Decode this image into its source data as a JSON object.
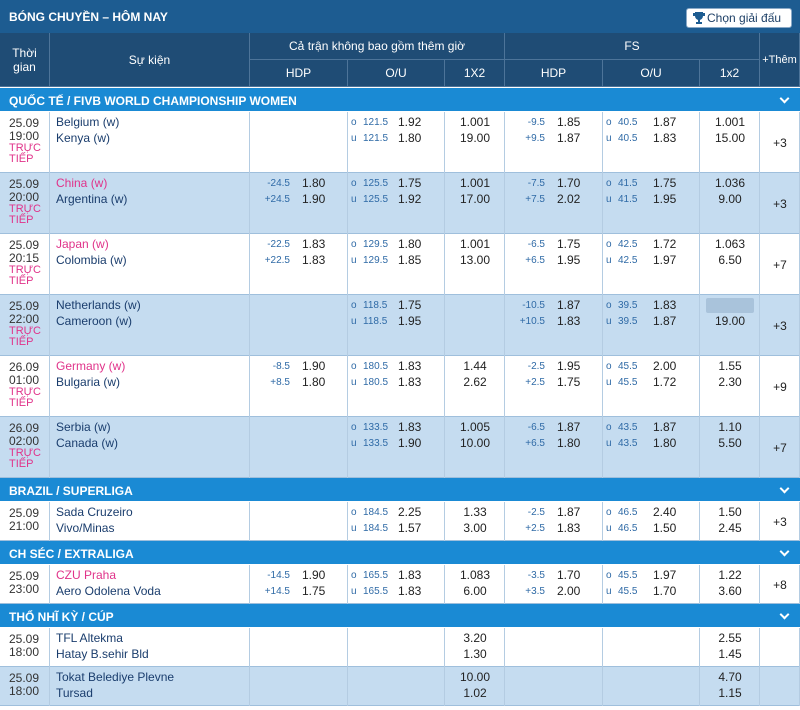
{
  "header": {
    "title": "BÓNG CHUYỀN – HÔM NAY",
    "button": "Chọn giải đấu"
  },
  "columns": {
    "time": "Thời gian",
    "event": "Sự kiện",
    "full": "Cả trận không bao gồm thêm giờ",
    "fs": "FS",
    "more": "+Thêm",
    "sub": [
      "HDP",
      "O/U",
      "1X2",
      "HDP",
      "O/U",
      "1x2"
    ]
  },
  "leagues": [
    {
      "name": "QUỐC TẾ / FIVB WORLD CHAMPIONSHIP WOMEN",
      "matches": [
        {
          "date": "25.09",
          "time": "19:00",
          "status": "TRỰC TIẾP",
          "teams": [
            "Belgium (w)",
            "Kenya (w)"
          ],
          "ft_hdp": null,
          "ft_ou": [
            [
              "o",
              "121.5",
              "1.92"
            ],
            [
              "u",
              "121.5",
              "1.80"
            ]
          ],
          "ft_1x2": [
            "1.001",
            "19.00"
          ],
          "fs_hdp": [
            [
              "-9.5",
              "1.85"
            ],
            [
              "+9.5",
              "1.87"
            ]
          ],
          "fs_ou": [
            [
              "o",
              "40.5",
              "1.87"
            ],
            [
              "u",
              "40.5",
              "1.83"
            ]
          ],
          "fs_1x2": [
            "1.001",
            "15.00"
          ],
          "more": "+3"
        },
        {
          "date": "25.09",
          "time": "20:00",
          "status": "TRỰC TIẾP",
          "teams": [
            "China (w)",
            "Argentina (w)"
          ],
          "home_color": "#e0338a",
          "ft_hdp": [
            [
              "-24.5",
              "1.80"
            ],
            [
              "+24.5",
              "1.90"
            ]
          ],
          "ft_ou": [
            [
              "o",
              "125.5",
              "1.75"
            ],
            [
              "u",
              "125.5",
              "1.92"
            ]
          ],
          "ft_1x2": [
            "1.001",
            "17.00"
          ],
          "fs_hdp": [
            [
              "-7.5",
              "1.70"
            ],
            [
              "+7.5",
              "2.02"
            ]
          ],
          "fs_ou": [
            [
              "o",
              "41.5",
              "1.75"
            ],
            [
              "u",
              "41.5",
              "1.95"
            ]
          ],
          "fs_1x2": [
            "1.036",
            "9.00"
          ],
          "more": "+3"
        },
        {
          "date": "25.09",
          "time": "20:15",
          "status": "TRỰC TIẾP",
          "teams": [
            "Japan (w)",
            "Colombia (w)"
          ],
          "home_color": "#e0338a",
          "ft_hdp": [
            [
              "-22.5",
              "1.83"
            ],
            [
              "+22.5",
              "1.83"
            ]
          ],
          "ft_ou": [
            [
              "o",
              "129.5",
              "1.80"
            ],
            [
              "u",
              "129.5",
              "1.85"
            ]
          ],
          "ft_1x2": [
            "1.001",
            "13.00"
          ],
          "fs_hdp": [
            [
              "-6.5",
              "1.75"
            ],
            [
              "+6.5",
              "1.95"
            ]
          ],
          "fs_ou": [
            [
              "o",
              "42.5",
              "1.72"
            ],
            [
              "u",
              "42.5",
              "1.97"
            ]
          ],
          "fs_1x2": [
            "1.063",
            "6.50"
          ],
          "more": "+7"
        },
        {
          "date": "25.09",
          "time": "22:00",
          "status": "TRỰC TIẾP",
          "teams": [
            "Netherlands (w)",
            "Cameroon (w)"
          ],
          "ft_hdp": null,
          "ft_ou": [
            [
              "o",
              "118.5",
              "1.75"
            ],
            [
              "u",
              "118.5",
              "1.95"
            ]
          ],
          "ft_1x2": null,
          "fs_hdp": [
            [
              "-10.5",
              "1.87"
            ],
            [
              "+10.5",
              "1.83"
            ]
          ],
          "fs_ou": [
            [
              "o",
              "39.5",
              "1.83"
            ],
            [
              "u",
              "39.5",
              "1.87"
            ]
          ],
          "fs_1x2": [
            null,
            "19.00"
          ],
          "fs_1x2_locked": true,
          "more": "+3"
        },
        {
          "date": "26.09",
          "time": "01:00",
          "status": "TRỰC TIẾP",
          "teams": [
            "Germany (w)",
            "Bulgaria (w)"
          ],
          "home_color": "#e0338a",
          "ft_hdp": [
            [
              "-8.5",
              "1.90"
            ],
            [
              "+8.5",
              "1.80"
            ]
          ],
          "ft_ou": [
            [
              "o",
              "180.5",
              "1.83"
            ],
            [
              "u",
              "180.5",
              "1.83"
            ]
          ],
          "ft_1x2": [
            "1.44",
            "2.62"
          ],
          "fs_hdp": [
            [
              "-2.5",
              "1.95"
            ],
            [
              "+2.5",
              "1.75"
            ]
          ],
          "fs_ou": [
            [
              "o",
              "45.5",
              "2.00"
            ],
            [
              "u",
              "45.5",
              "1.72"
            ]
          ],
          "fs_1x2": [
            "1.55",
            "2.30"
          ],
          "more": "+9"
        },
        {
          "date": "26.09",
          "time": "02:00",
          "status": "TRỰC TIẾP",
          "teams": [
            "Serbia (w)",
            "Canada (w)"
          ],
          "ft_hdp": null,
          "ft_ou": [
            [
              "o",
              "133.5",
              "1.83"
            ],
            [
              "u",
              "133.5",
              "1.90"
            ]
          ],
          "ft_1x2": [
            "1.005",
            "10.00"
          ],
          "fs_hdp": [
            [
              "-6.5",
              "1.87"
            ],
            [
              "+6.5",
              "1.80"
            ]
          ],
          "fs_ou": [
            [
              "o",
              "43.5",
              "1.87"
            ],
            [
              "u",
              "43.5",
              "1.80"
            ]
          ],
          "fs_1x2": [
            "1.10",
            "5.50"
          ],
          "more": "+7"
        }
      ]
    },
    {
      "name": "BRAZIL / SUPERLIGA",
      "matches": [
        {
          "date": "25.09",
          "time": "21:00",
          "teams": [
            "Sada Cruzeiro",
            "Vivo/Minas"
          ],
          "ft_hdp": null,
          "ft_ou": [
            [
              "o",
              "184.5",
              "2.25"
            ],
            [
              "u",
              "184.5",
              "1.57"
            ]
          ],
          "ft_1x2": [
            "1.33",
            "3.00"
          ],
          "fs_hdp": [
            [
              "-2.5",
              "1.87"
            ],
            [
              "+2.5",
              "1.83"
            ]
          ],
          "fs_ou": [
            [
              "o",
              "46.5",
              "2.40"
            ],
            [
              "u",
              "46.5",
              "1.50"
            ]
          ],
          "fs_1x2": [
            "1.50",
            "2.45"
          ],
          "more": "+3"
        }
      ]
    },
    {
      "name": "CH SÉC / EXTRALIGA",
      "matches": [
        {
          "date": "25.09",
          "time": "23:00",
          "teams": [
            "CZU Praha",
            "Aero Odolena Voda"
          ],
          "home_color": "#e0338a",
          "ft_hdp": [
            [
              "-14.5",
              "1.90"
            ],
            [
              "+14.5",
              "1.75"
            ]
          ],
          "ft_ou": [
            [
              "o",
              "165.5",
              "1.83"
            ],
            [
              "u",
              "165.5",
              "1.83"
            ]
          ],
          "ft_1x2": [
            "1.083",
            "6.00"
          ],
          "fs_hdp": [
            [
              "-3.5",
              "1.70"
            ],
            [
              "+3.5",
              "2.00"
            ]
          ],
          "fs_ou": [
            [
              "o",
              "45.5",
              "1.97"
            ],
            [
              "u",
              "45.5",
              "1.70"
            ]
          ],
          "fs_1x2": [
            "1.22",
            "3.60"
          ],
          "more": "+8"
        }
      ]
    },
    {
      "name": "THỔ NHĨ KỲ / CÚP",
      "matches": [
        {
          "date": "25.09",
          "time": "18:00",
          "teams": [
            "TFL Altekma",
            "Hatay B.sehir Bld"
          ],
          "ft_hdp": null,
          "ft_ou": null,
          "ft_1x2": [
            "3.20",
            "1.30"
          ],
          "fs_hdp": null,
          "fs_ou": null,
          "fs_1x2": [
            "2.55",
            "1.45"
          ],
          "more": null
        },
        {
          "date": "25.09",
          "time": "18:00",
          "teams": [
            "Tokat Belediye Plevne",
            "Tursad"
          ],
          "ft_hdp": null,
          "ft_ou": null,
          "ft_1x2": [
            "10.00",
            "1.02"
          ],
          "fs_hdp": null,
          "fs_ou": null,
          "fs_1x2": [
            "4.70",
            "1.15"
          ],
          "more": null
        }
      ]
    }
  ]
}
